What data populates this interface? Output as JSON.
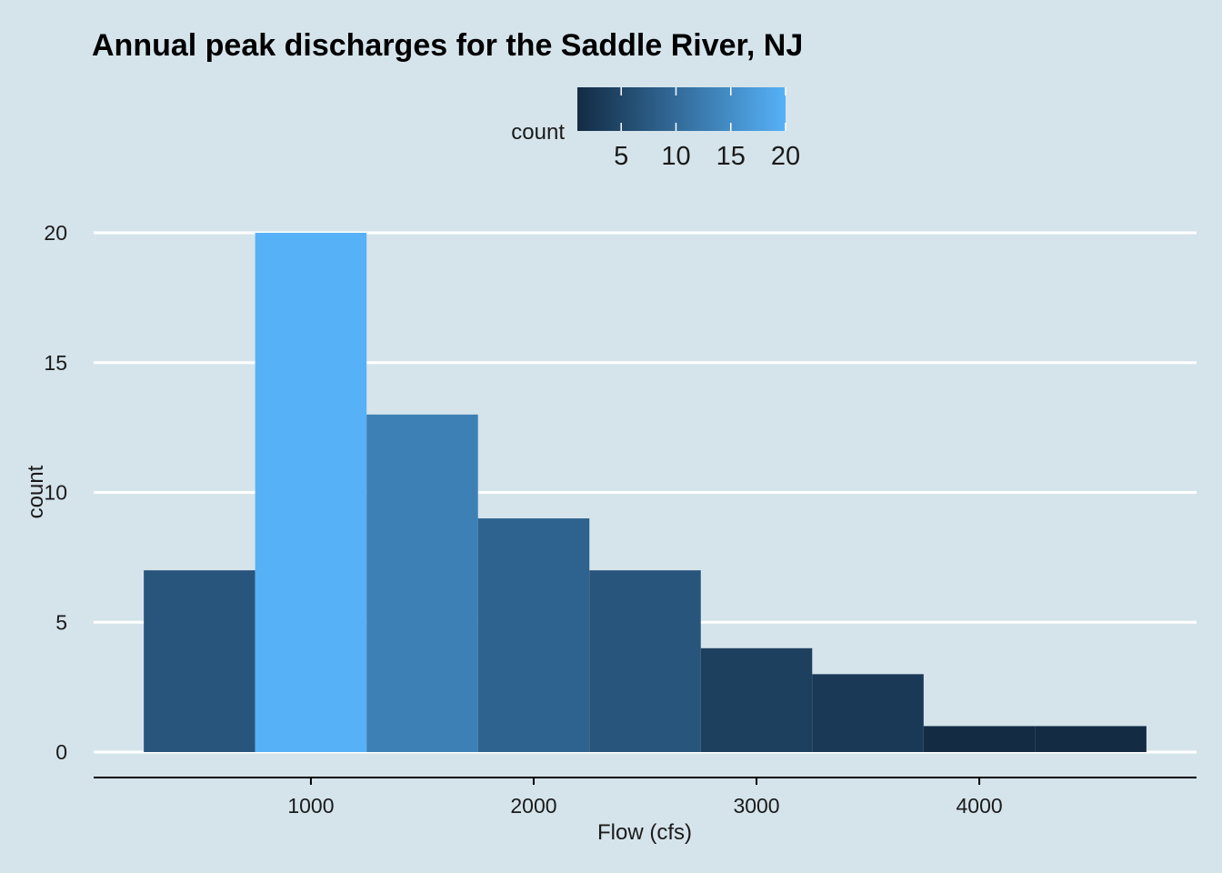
{
  "chart_data": {
    "type": "bar",
    "title": "Annual peak discharges for the Saddle River, NJ",
    "xlabel": "Flow (cfs)",
    "ylabel": "count",
    "bins": [
      {
        "x0": 250,
        "x1": 750,
        "count": 7
      },
      {
        "x0": 750,
        "x1": 1250,
        "count": 20
      },
      {
        "x0": 1250,
        "x1": 1750,
        "count": 13
      },
      {
        "x0": 1750,
        "x1": 2250,
        "count": 9
      },
      {
        "x0": 2250,
        "x1": 2750,
        "count": 7
      },
      {
        "x0": 2750,
        "x1": 3250,
        "count": 4
      },
      {
        "x0": 3250,
        "x1": 3750,
        "count": 3
      },
      {
        "x0": 3750,
        "x1": 4250,
        "count": 1
      },
      {
        "x0": 4250,
        "x1": 4750,
        "count": 1
      }
    ],
    "xlim": [
      25,
      4975
    ],
    "ylim": [
      0,
      20
    ],
    "x_ticks": [
      1000,
      2000,
      3000,
      4000
    ],
    "y_ticks": [
      0,
      5,
      10,
      15,
      20
    ],
    "grid": "horizontal",
    "legend": {
      "title": "count",
      "position": "top",
      "range": [
        1,
        20
      ],
      "ticks": [
        5,
        10,
        15,
        20
      ],
      "color_low": "#132b43",
      "color_high": "#56b1f7"
    }
  }
}
